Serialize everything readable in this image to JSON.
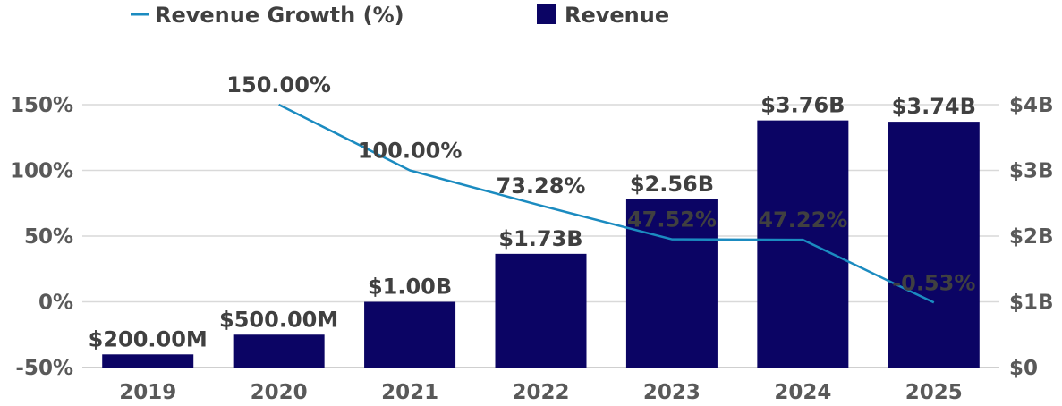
{
  "chart_data": {
    "type": "bar+line",
    "categories": [
      "2019",
      "2020",
      "2021",
      "2022",
      "2023",
      "2024",
      "2025"
    ],
    "series": [
      {
        "name": "Revenue",
        "type": "bar",
        "axis": "right",
        "color": "#0b0464",
        "values": [
          0.2,
          0.5,
          1.0,
          1.73,
          2.56,
          3.76,
          3.74
        ],
        "labels": [
          "$200.00M",
          "$500.00M",
          "$1.00B",
          "$1.73B",
          "$2.56B",
          "$3.76B",
          "$3.74B"
        ]
      },
      {
        "name": "Revenue Growth (%)",
        "type": "line",
        "axis": "left",
        "color": "#1b8bc0",
        "values": [
          null,
          150.0,
          100.0,
          73.28,
          47.52,
          47.22,
          -0.53
        ],
        "labels": [
          "",
          "150.00%",
          "100.00%",
          "73.28%",
          "47.52%",
          "47.22%",
          "-0.53%"
        ]
      }
    ],
    "y_left": {
      "ylim": [
        -50,
        150
      ],
      "ticks": [
        "-50%",
        "0%",
        "50%",
        "100%",
        "150%"
      ],
      "tick_values": [
        -50,
        0,
        50,
        100,
        150
      ]
    },
    "y_right": {
      "ylim": [
        0,
        4
      ],
      "ticks": [
        "$0",
        "$1B",
        "$2B",
        "$3B",
        "$4B"
      ],
      "tick_values": [
        0,
        1,
        2,
        3,
        4
      ]
    },
    "grid": true,
    "legend": [
      {
        "name": "Revenue Growth (%)",
        "marker": "line",
        "color": "#1b8bc0"
      },
      {
        "name": "Revenue",
        "marker": "square",
        "color": "#0b0464"
      }
    ],
    "legend_position": "top-left"
  }
}
